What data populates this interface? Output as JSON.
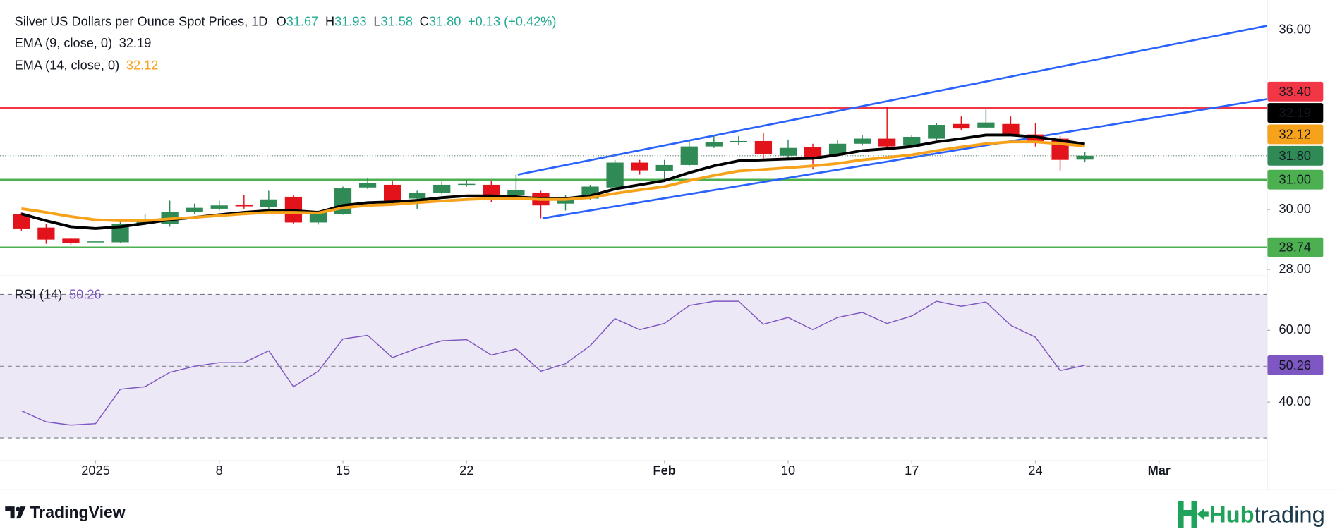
{
  "header": {
    "title": "Silver US Dollars per Ounce Spot Prices, 1D",
    "ohlc": [
      {
        "key": "O",
        "value": "31.67"
      },
      {
        "key": "H",
        "value": "31.93"
      },
      {
        "key": "L",
        "value": "31.58"
      },
      {
        "key": "C",
        "value": "31.80"
      }
    ],
    "change": "+0.13 (+0.42%)"
  },
  "chart_data": [
    {
      "type": "candlestick",
      "xlim": [
        -0.865,
        50.35
      ],
      "ylim": [
        27.8,
        37.0
      ],
      "yticks": [
        {
          "value": 28,
          "label": "28.00"
        },
        {
          "value": 30,
          "label": "30.00"
        },
        {
          "value": 36,
          "label": "36.00"
        }
      ],
      "up_color": "#2f8a56",
      "down_color": "#e3131b",
      "open": [
        29.86,
        29.4,
        29.03,
        28.94,
        28.91,
        29.54,
        29.51,
        29.91,
        30.03,
        30.17,
        30.09,
        30.43,
        29.57,
        29.86,
        30.74,
        30.83,
        30.37,
        30.57,
        30.83,
        30.83,
        30.49,
        30.57,
        30.2,
        30.37,
        30.74,
        31.57,
        31.29,
        31.49,
        32.11,
        32.26,
        32.29,
        31.8,
        32.09,
        31.86,
        32.2,
        32.37,
        32.14,
        32.37,
        32.86,
        32.74,
        32.86,
        32.51,
        32.37,
        31.67
      ],
      "high": [
        29.9,
        29.51,
        29.06,
        28.94,
        29.6,
        29.86,
        30.3,
        30.2,
        30.3,
        30.49,
        30.63,
        30.49,
        29.97,
        30.77,
        31.06,
        30.97,
        30.63,
        30.94,
        31.0,
        30.97,
        31.17,
        30.63,
        30.49,
        30.83,
        31.66,
        31.66,
        31.66,
        32.29,
        32.46,
        32.46,
        32.57,
        32.34,
        32.2,
        32.34,
        32.49,
        33.43,
        32.49,
        32.89,
        33.11,
        33.34,
        33.11,
        32.89,
        32.46,
        31.93
      ],
      "low": [
        29.3,
        28.86,
        28.83,
        28.94,
        28.89,
        29.49,
        29.43,
        29.85,
        29.97,
        30.03,
        30.0,
        29.51,
        29.5,
        29.83,
        30.69,
        30.17,
        30.03,
        30.51,
        30.77,
        30.26,
        30.43,
        29.71,
        29.97,
        30.31,
        30.69,
        31.17,
        30.97,
        31.46,
        32.06,
        32.17,
        31.71,
        31.66,
        31.34,
        31.8,
        32.14,
        32.0,
        32.06,
        32.31,
        32.66,
        32.74,
        32.46,
        32.11,
        31.31,
        31.58
      ],
      "close": [
        29.37,
        29.0,
        28.89,
        28.94,
        29.51,
        29.66,
        29.91,
        30.06,
        30.14,
        30.11,
        30.34,
        29.57,
        29.91,
        30.71,
        30.89,
        30.29,
        30.57,
        30.83,
        30.86,
        30.49,
        30.66,
        30.14,
        30.4,
        30.77,
        31.57,
        31.31,
        31.49,
        32.11,
        32.26,
        32.29,
        31.86,
        32.06,
        31.77,
        32.2,
        32.37,
        32.11,
        32.43,
        32.83,
        32.71,
        32.91,
        32.51,
        32.29,
        31.66,
        31.8
      ],
      "series": [
        {
          "name": "EMA (9, close, 0)",
          "color": "#000000",
          "values": [
            29.86,
            29.63,
            29.43,
            29.37,
            29.43,
            29.54,
            29.66,
            29.74,
            29.83,
            29.91,
            29.97,
            29.97,
            29.91,
            30.14,
            30.23,
            30.26,
            30.31,
            30.4,
            30.46,
            30.46,
            30.43,
            30.37,
            30.37,
            30.46,
            30.69,
            30.83,
            30.97,
            31.23,
            31.46,
            31.63,
            31.66,
            31.69,
            31.71,
            31.83,
            31.97,
            32.03,
            32.11,
            32.26,
            32.37,
            32.49,
            32.49,
            32.43,
            32.31,
            32.19
          ]
        },
        {
          "name": "EMA (14, close, 0)",
          "color": "#f7a21b",
          "values": [
            30.03,
            29.91,
            29.77,
            29.66,
            29.63,
            29.63,
            29.69,
            29.74,
            29.8,
            29.86,
            29.91,
            29.91,
            29.89,
            30.06,
            30.14,
            30.17,
            30.23,
            30.29,
            30.34,
            30.37,
            30.37,
            30.34,
            30.34,
            30.4,
            30.54,
            30.66,
            30.77,
            30.97,
            31.14,
            31.29,
            31.34,
            31.4,
            31.46,
            31.54,
            31.66,
            31.74,
            31.83,
            31.97,
            32.09,
            32.2,
            32.26,
            32.26,
            32.2,
            32.12
          ]
        }
      ],
      "levels": [
        {
          "value": 33.4,
          "label": "33.40",
          "color": "#f23645"
        },
        {
          "value": 31.0,
          "label": "31.00",
          "color": "#4caf50"
        },
        {
          "value": 28.74,
          "label": "28.74",
          "color": "#4caf50"
        }
      ],
      "trendlines": [
        {
          "color": "#2962ff",
          "points": [
            [
              20.07,
              31.17
            ],
            [
              50.35,
              36.14
            ]
          ]
        },
        {
          "color": "#2962ff",
          "points": [
            [
              21.07,
              29.71
            ],
            [
              50.35,
              33.69
            ]
          ]
        }
      ],
      "last_price": {
        "value": 31.8,
        "label": "31.80",
        "color": "#2f8a56"
      }
    },
    {
      "type": "line",
      "xlim": [
        -0.865,
        50.35
      ],
      "xticks": [
        {
          "value": 3,
          "label": "2025"
        },
        {
          "value": 8,
          "label": "8"
        },
        {
          "value": 13,
          "label": "15"
        },
        {
          "value": 18,
          "label": "22"
        },
        {
          "value": 26,
          "label": "Feb"
        },
        {
          "value": 31,
          "label": "10"
        },
        {
          "value": 36,
          "label": "17"
        },
        {
          "value": 41,
          "label": "24"
        },
        {
          "value": 46,
          "label": "Mar"
        }
      ],
      "ylim": [
        23.8,
        74.8
      ],
      "yticks": [
        {
          "value": 40,
          "label": "40.00"
        },
        {
          "value": 60,
          "label": "60.00"
        }
      ],
      "bands": [
        70,
        50,
        30
      ],
      "band_color": "#ede8f6",
      "series": [
        {
          "name": "RSI (14)",
          "color": "#7e57c2",
          "values": [
            37.6,
            34.5,
            33.6,
            34.0,
            43.6,
            44.3,
            48.3,
            50.0,
            51.0,
            51.0,
            54.3,
            44.3,
            48.6,
            57.6,
            58.6,
            52.4,
            55.0,
            57.1,
            57.4,
            53.1,
            54.8,
            48.6,
            50.7,
            55.7,
            63.3,
            60.2,
            61.9,
            66.9,
            68.1,
            68.1,
            61.7,
            63.6,
            60.2,
            63.6,
            65.0,
            61.9,
            64.0,
            68.1,
            66.7,
            67.9,
            61.4,
            58.1,
            48.8,
            50.26
          ]
        }
      ]
    }
  ],
  "branding": {
    "tradingview": "TradingView",
    "hubtrading": [
      "Hub",
      "trading"
    ]
  }
}
